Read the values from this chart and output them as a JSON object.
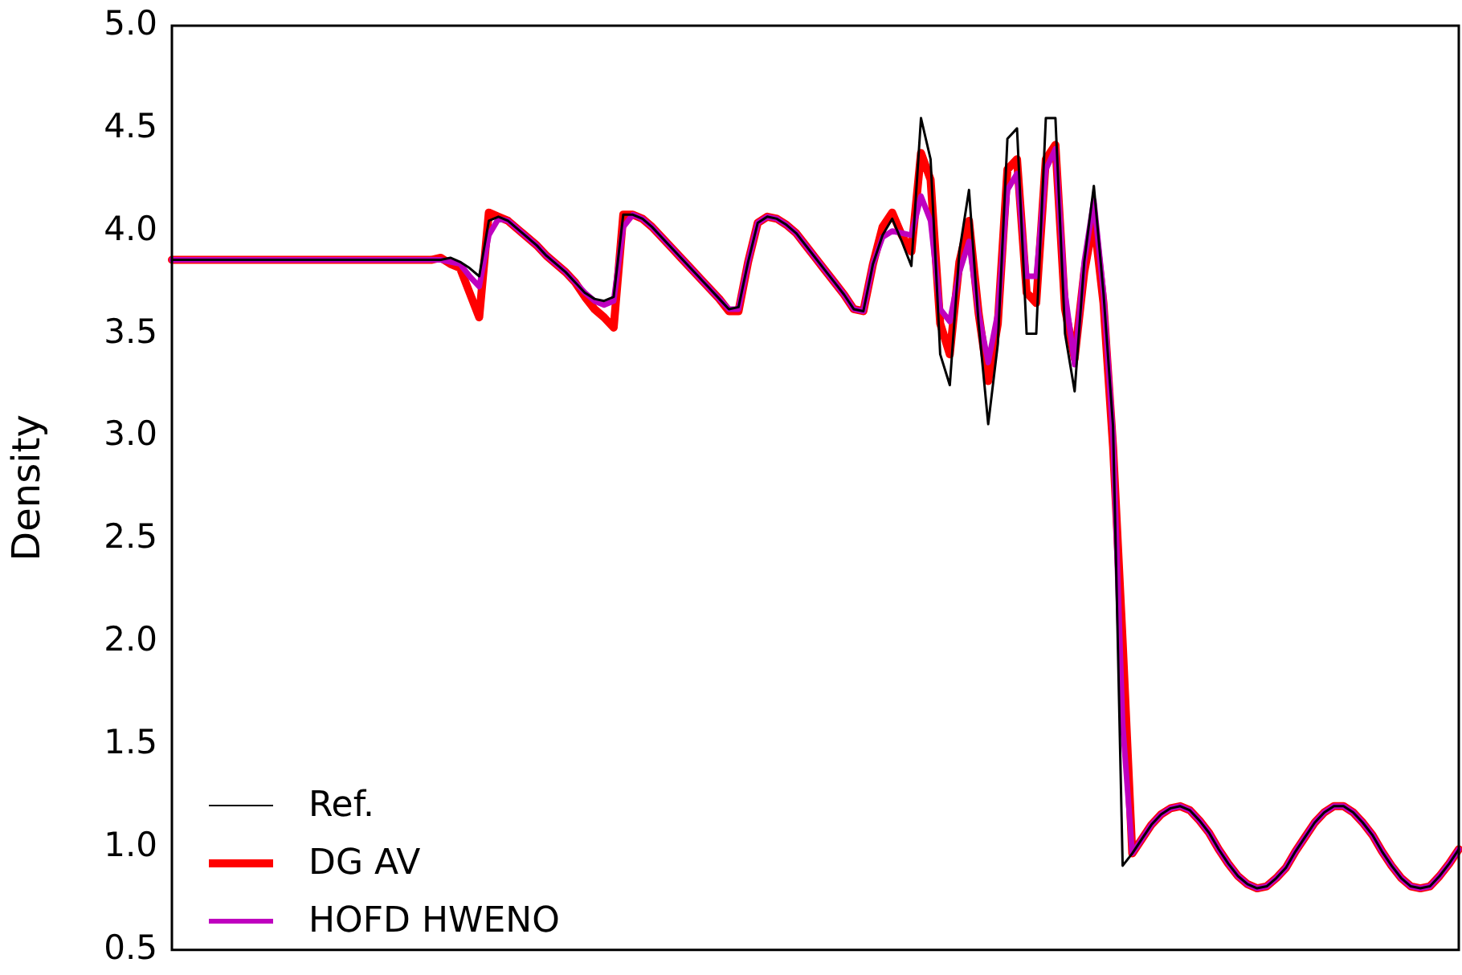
{
  "chart_data": {
    "type": "line",
    "ylabel": "Density",
    "tick_labels": "y",
    "grid": false,
    "legend": "lower left",
    "marker": "none",
    "line_style": "solid",
    "ylim": [
      0.5,
      5.0
    ],
    "yticks": [
      0.5,
      {
        "value": 1,
        "label": "1.0"
      },
      1.5,
      {
        "value": 2,
        "label": "2.0"
      },
      2.5,
      {
        "value": 3,
        "label": "3.0"
      },
      3.5,
      {
        "value": 4,
        "label": "4.0"
      },
      4.5,
      {
        "value": 5,
        "label": "5.0"
      }
    ],
    "categories": [
      null,
      null,
      null,
      null,
      null,
      null,
      null,
      null,
      null,
      null,
      null,
      null,
      null,
      null,
      null,
      null,
      null,
      null,
      null,
      null,
      null,
      null,
      null,
      null,
      null,
      null,
      null,
      null,
      null,
      null,
      null,
      null,
      null,
      null,
      null,
      null,
      null,
      null,
      null,
      null,
      null,
      null,
      null,
      null,
      null,
      null,
      null,
      null,
      null,
      null,
      null,
      null,
      null,
      null,
      null,
      null,
      null,
      null,
      null,
      null,
      null,
      null,
      null,
      null,
      null,
      null,
      null,
      null,
      null,
      null,
      null,
      null,
      null,
      null,
      null,
      null,
      null,
      null,
      null,
      null,
      null,
      null,
      null,
      null,
      null,
      null,
      null,
      null,
      null,
      null,
      null,
      null,
      null,
      null,
      null,
      null,
      null,
      null,
      null,
      null,
      null,
      null,
      null,
      null,
      null,
      null,
      null,
      null,
      null,
      null,
      null,
      null,
      null,
      null,
      null,
      null,
      null,
      null,
      null,
      null,
      null,
      null,
      null,
      null,
      null,
      null,
      null,
      null,
      null,
      null,
      null,
      null,
      null,
      null,
      null
    ],
    "series": [
      {
        "name": "Ref.",
        "color": "#000000",
        "values": [
          3.86,
          3.86,
          3.86,
          3.86,
          3.86,
          3.86,
          3.86,
          3.86,
          3.86,
          3.86,
          3.86,
          3.86,
          3.86,
          3.86,
          3.86,
          3.86,
          3.86,
          3.86,
          3.86,
          3.86,
          3.86,
          3.86,
          3.86,
          3.86,
          3.86,
          3.86,
          3.86,
          3.86,
          3.86,
          3.87,
          3.85,
          3.82,
          3.78,
          4.05,
          4.07,
          4.05,
          4.01,
          3.97,
          3.93,
          3.88,
          3.84,
          3.8,
          3.75,
          3.7,
          3.67,
          3.66,
          3.68,
          4.08,
          4.08,
          4.06,
          4.02,
          3.97,
          3.92,
          3.87,
          3.82,
          3.77,
          3.72,
          3.67,
          3.62,
          3.63,
          3.85,
          4.04,
          4.07,
          4.06,
          4.03,
          3.99,
          3.93,
          3.87,
          3.81,
          3.75,
          3.69,
          3.62,
          3.61,
          3.84,
          3.98,
          4.06,
          3.95,
          3.83,
          4.55,
          4.35,
          3.4,
          3.25,
          3.9,
          4.2,
          3.55,
          3.06,
          3.45,
          4.45,
          4.5,
          3.5,
          3.5,
          4.55,
          4.55,
          3.5,
          3.22,
          3.85,
          4.22,
          3.7,
          3.05,
          0.91,
          0.97,
          1.04,
          1.11,
          1.16,
          1.19,
          1.2,
          1.18,
          1.13,
          1.07,
          0.99,
          0.92,
          0.86,
          0.82,
          0.8,
          0.81,
          0.85,
          0.9,
          0.98,
          1.05,
          1.12,
          1.17,
          1.2,
          1.2,
          1.17,
          1.12,
          1.06,
          0.98,
          0.91,
          0.85,
          0.81,
          0.8,
          0.81,
          0.86,
          0.92,
          0.99
        ]
      },
      {
        "name": "DG AV",
        "color": "#ff0000",
        "values": [
          3.86,
          3.86,
          3.86,
          3.86,
          3.86,
          3.86,
          3.86,
          3.86,
          3.86,
          3.86,
          3.86,
          3.86,
          3.86,
          3.86,
          3.86,
          3.86,
          3.86,
          3.86,
          3.86,
          3.86,
          3.86,
          3.86,
          3.86,
          3.86,
          3.86,
          3.86,
          3.86,
          3.86,
          3.87,
          3.84,
          3.82,
          3.7,
          3.58,
          4.09,
          4.07,
          4.05,
          4.01,
          3.97,
          3.93,
          3.88,
          3.84,
          3.8,
          3.75,
          3.68,
          3.62,
          3.58,
          3.53,
          4.08,
          4.08,
          4.06,
          4.02,
          3.97,
          3.92,
          3.87,
          3.82,
          3.77,
          3.72,
          3.67,
          3.61,
          3.61,
          3.85,
          4.04,
          4.07,
          4.06,
          4.03,
          3.99,
          3.93,
          3.87,
          3.81,
          3.75,
          3.69,
          3.62,
          3.61,
          3.84,
          4.02,
          4.09,
          3.98,
          3.9,
          4.38,
          4.25,
          3.55,
          3.4,
          3.85,
          4.05,
          3.6,
          3.27,
          3.55,
          4.3,
          4.35,
          3.7,
          3.65,
          4.35,
          4.42,
          3.62,
          3.38,
          3.8,
          4.06,
          3.65,
          2.95,
          2.0,
          0.97,
          1.04,
          1.11,
          1.16,
          1.19,
          1.2,
          1.18,
          1.13,
          1.07,
          0.99,
          0.92,
          0.86,
          0.82,
          0.8,
          0.81,
          0.85,
          0.9,
          0.98,
          1.05,
          1.12,
          1.17,
          1.2,
          1.2,
          1.17,
          1.12,
          1.06,
          0.98,
          0.91,
          0.85,
          0.81,
          0.8,
          0.81,
          0.86,
          0.92,
          0.99
        ]
      },
      {
        "name": "HOFD HWENO",
        "color": "#bf00bf",
        "values": [
          3.86,
          3.86,
          3.86,
          3.86,
          3.86,
          3.86,
          3.86,
          3.86,
          3.86,
          3.86,
          3.86,
          3.86,
          3.86,
          3.86,
          3.86,
          3.86,
          3.86,
          3.86,
          3.86,
          3.86,
          3.86,
          3.86,
          3.86,
          3.86,
          3.86,
          3.86,
          3.86,
          3.86,
          3.86,
          3.85,
          3.84,
          3.78,
          3.73,
          3.98,
          4.06,
          4.05,
          4.01,
          3.97,
          3.93,
          3.88,
          3.84,
          3.8,
          3.75,
          3.7,
          3.66,
          3.64,
          3.66,
          4.02,
          4.08,
          4.06,
          4.02,
          3.97,
          3.92,
          3.87,
          3.82,
          3.77,
          3.72,
          3.67,
          3.62,
          3.62,
          3.85,
          4.04,
          4.07,
          4.06,
          4.03,
          3.99,
          3.93,
          3.87,
          3.81,
          3.75,
          3.69,
          3.62,
          3.61,
          3.84,
          3.97,
          4.0,
          3.99,
          3.98,
          4.17,
          4.05,
          3.62,
          3.56,
          3.8,
          3.95,
          3.6,
          3.36,
          3.6,
          4.2,
          4.28,
          3.78,
          3.78,
          4.3,
          4.4,
          3.7,
          3.35,
          3.85,
          4.15,
          3.7,
          3.0,
          1.6,
          0.97,
          1.04,
          1.11,
          1.16,
          1.19,
          1.2,
          1.18,
          1.13,
          1.07,
          0.99,
          0.92,
          0.86,
          0.82,
          0.8,
          0.81,
          0.85,
          0.9,
          0.98,
          1.05,
          1.12,
          1.17,
          1.2,
          1.2,
          1.17,
          1.12,
          1.06,
          0.98,
          0.91,
          0.85,
          0.81,
          0.8,
          0.81,
          0.86,
          0.92,
          0.99
        ]
      }
    ]
  }
}
